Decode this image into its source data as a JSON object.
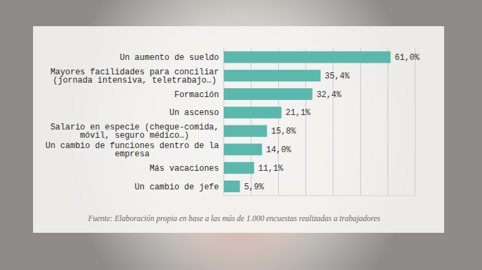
{
  "chart_data": {
    "type": "bar",
    "orientation": "horizontal",
    "categories": [
      "Un aumento de sueldo",
      "Mayores facilidades para conciliar\n(jornada intensiva, teletrabajo…)",
      "Formación",
      "Un ascenso",
      "Salario en especie (cheque-comida,\nmóvil, seguro médico…)",
      "Un cambio de funciones dentro de la\nempresa",
      "Más vacaciones",
      "Un cambio de jefe"
    ],
    "values": [
      61.0,
      35.4,
      32.4,
      21.1,
      15.8,
      14.0,
      11.1,
      5.9
    ],
    "value_labels": [
      "61,0%",
      "35,4%",
      "32,4%",
      "21,1%",
      "15,8%",
      "14,0%",
      "11,1%",
      "5,9%"
    ],
    "data_labels": true,
    "color": "#5bb8ad",
    "xlim": [
      0,
      70
    ],
    "xticks": [
      0,
      10,
      20,
      30,
      40,
      50,
      60,
      70
    ],
    "grid": true,
    "tick_labels": false,
    "source": "Fuente: Elaboración propia en base a las más de 1.000 encuestas realizadas a trabajadores"
  }
}
